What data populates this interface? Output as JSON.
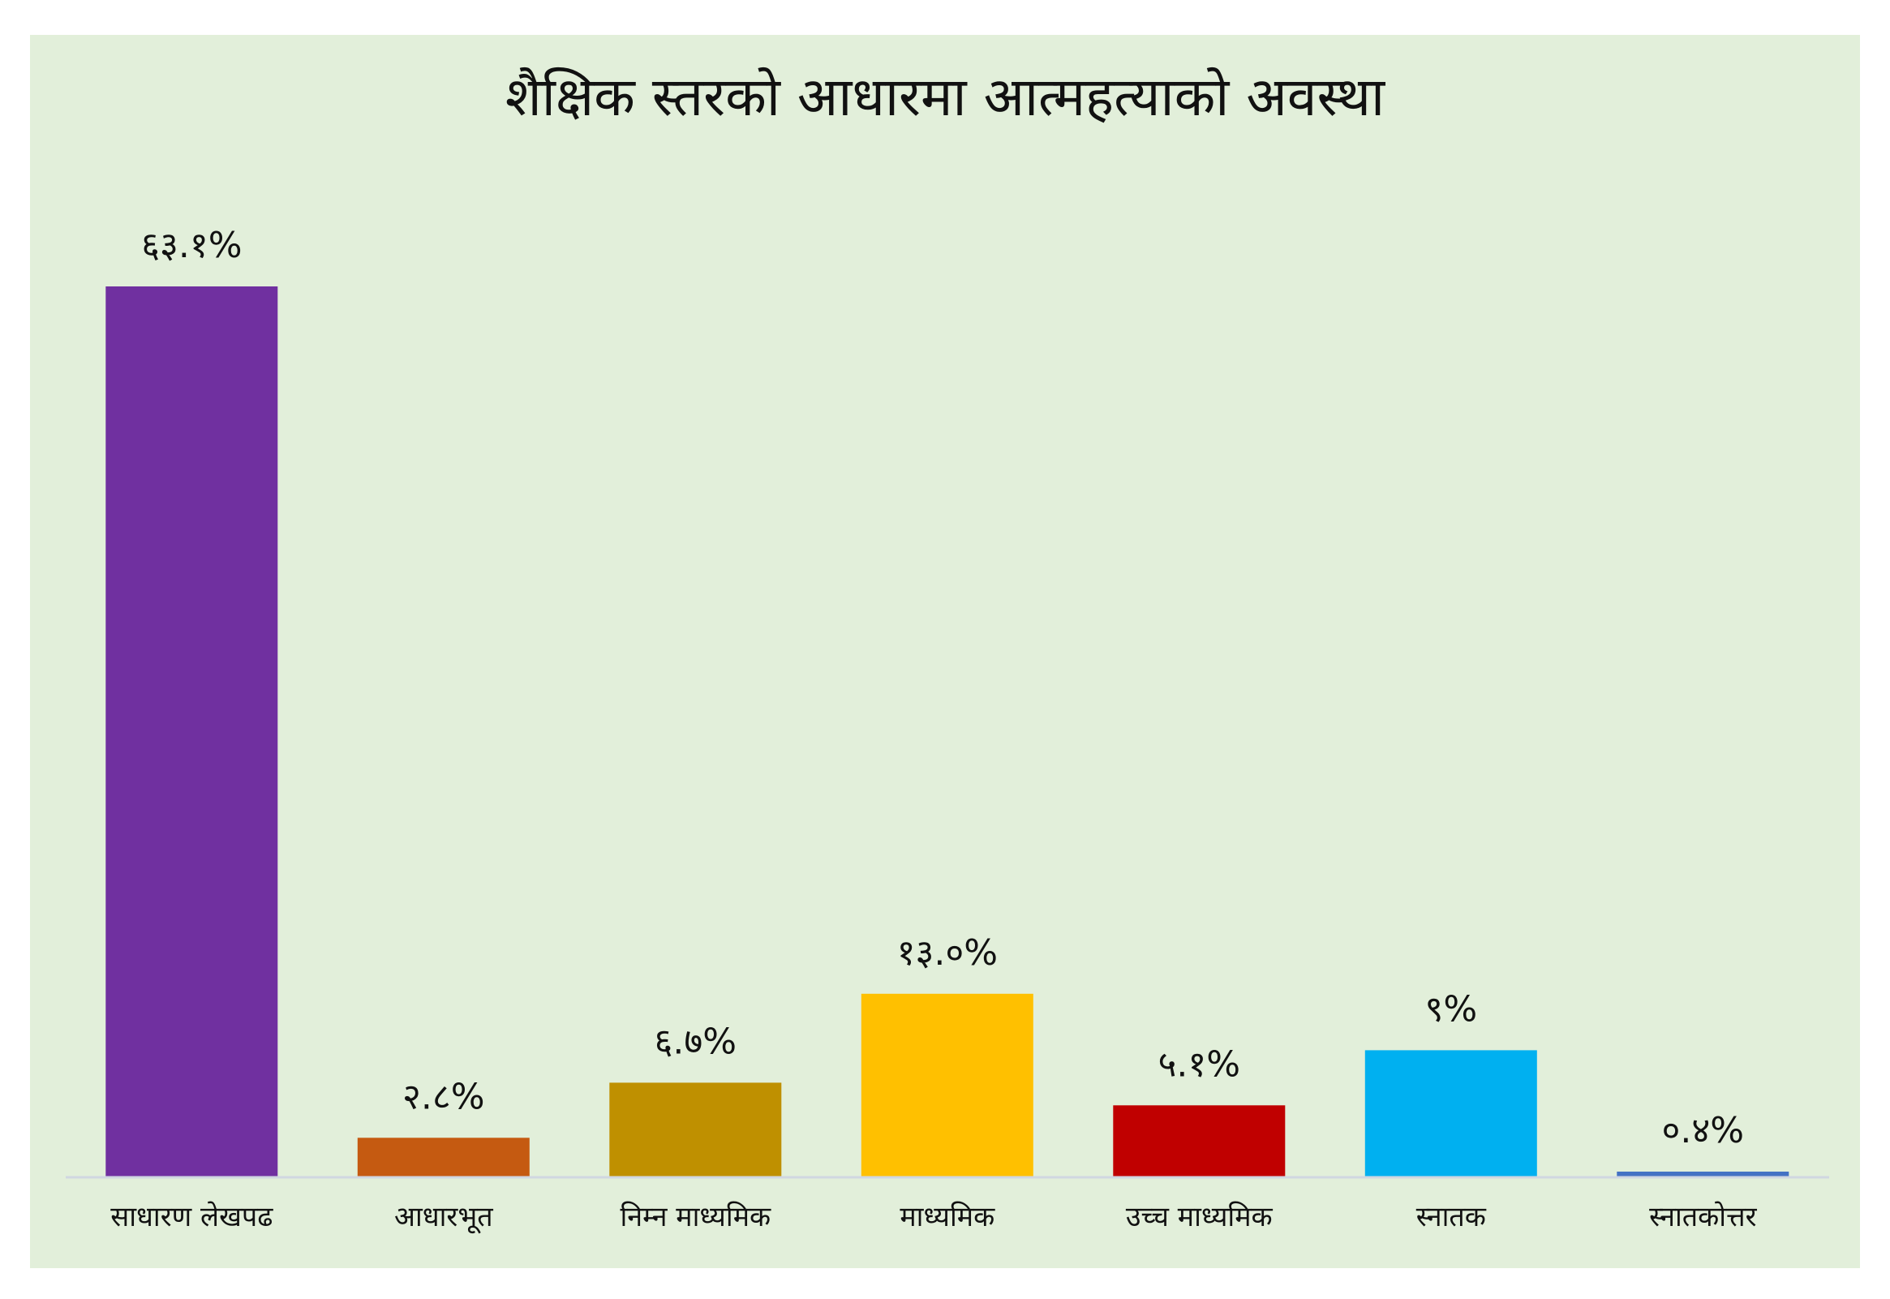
{
  "chart_data": {
    "type": "bar",
    "title": "शैक्षिक स्तरको आधारमा आत्महत्याको अवस्था",
    "categories": [
      "साधारण लेखपढ",
      "आधारभूत",
      "निम्न माध्यमिक",
      "माध्यमिक",
      "उच्च माध्यमिक",
      "स्नातक",
      "स्नातकोत्तर"
    ],
    "values": [
      63.1,
      2.8,
      6.7,
      13.0,
      5.1,
      9,
      0.4
    ],
    "data_labels": [
      "६३.१%",
      "२.८%",
      "६.७%",
      "१३.०%",
      "५.१%",
      "९%",
      "०.४%"
    ],
    "colors": [
      "#7030a0",
      "#c55a11",
      "#bf9000",
      "#ffc000",
      "#c00000",
      "#00b0f0",
      "#4472c4"
    ],
    "background_color": "#e2efda",
    "axis_color": "#d0d7e1",
    "xlabel": "",
    "ylabel": "",
    "ylim": [
      0,
      63.1
    ],
    "grid": false,
    "legend": "none"
  }
}
